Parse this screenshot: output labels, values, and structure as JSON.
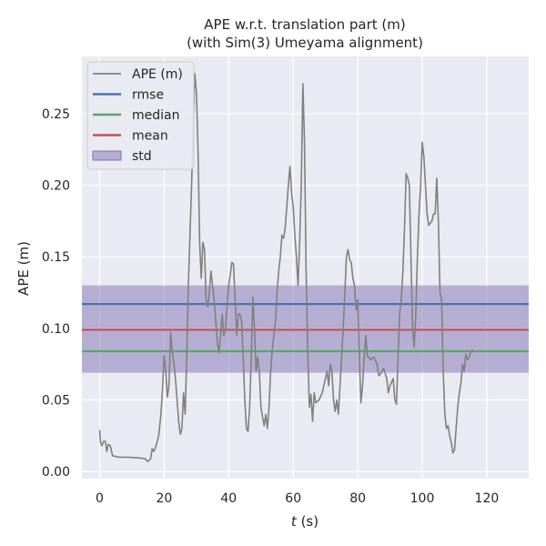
{
  "chart_data": {
    "type": "line",
    "title": "APE w.r.t. translation part (m)",
    "subtitle": "(with Sim(3) Umeyama alignment)",
    "xlabel_var": "t",
    "xlabel_unit": " (s)",
    "ylabel": "APE (m)",
    "xlim": [
      -5.5,
      133
    ],
    "ylim": [
      -0.005,
      0.29
    ],
    "xticks": [
      0,
      20,
      40,
      60,
      80,
      100,
      120
    ],
    "yticks": [
      0.0,
      0.05,
      0.1,
      0.15,
      0.2,
      0.25
    ],
    "grid": true,
    "legend_position": "top-left",
    "legend": [
      {
        "key": "ape",
        "label": "APE (m)",
        "kind": "line",
        "color": "#808080"
      },
      {
        "key": "rmse",
        "label": "rmse",
        "kind": "line",
        "color": "#4c72b0"
      },
      {
        "key": "median",
        "label": "median",
        "kind": "line",
        "color": "#55a868"
      },
      {
        "key": "mean",
        "label": "mean",
        "kind": "line",
        "color": "#c44e52"
      },
      {
        "key": "std",
        "label": "std",
        "kind": "patch",
        "color": "#8172b2"
      }
    ],
    "stats": {
      "rmse": 0.117,
      "median": 0.084,
      "mean": 0.099,
      "std_low": 0.069,
      "std_high": 0.13
    },
    "series": [
      {
        "key": "ape",
        "color": "#808080",
        "points": [
          [
            0,
            0.029
          ],
          [
            0.3,
            0.02
          ],
          [
            0.7,
            0.018
          ],
          [
            1.2,
            0.021
          ],
          [
            1.8,
            0.021
          ],
          [
            2.2,
            0.014
          ],
          [
            2.7,
            0.019
          ],
          [
            3.3,
            0.018
          ],
          [
            4,
            0.011
          ],
          [
            6,
            0.01
          ],
          [
            9,
            0.01
          ],
          [
            12,
            0.0095
          ],
          [
            14,
            0.009
          ],
          [
            15,
            0.007
          ],
          [
            15.8,
            0.009
          ],
          [
            16.3,
            0.016
          ],
          [
            16.8,
            0.014
          ],
          [
            17.5,
            0.018
          ],
          [
            18.3,
            0.025
          ],
          [
            19,
            0.04
          ],
          [
            19.5,
            0.058
          ],
          [
            20,
            0.081
          ],
          [
            20.5,
            0.07
          ],
          [
            21,
            0.052
          ],
          [
            21.5,
            0.06
          ],
          [
            22,
            0.097
          ],
          [
            22.5,
            0.085
          ],
          [
            23,
            0.076
          ],
          [
            23.5,
            0.065
          ],
          [
            24,
            0.05
          ],
          [
            24.5,
            0.035
          ],
          [
            25,
            0.026
          ],
          [
            25.5,
            0.03
          ],
          [
            26,
            0.055
          ],
          [
            26.5,
            0.04
          ],
          [
            27,
            0.08
          ],
          [
            27.5,
            0.13
          ],
          [
            28,
            0.165
          ],
          [
            28.5,
            0.2
          ],
          [
            29,
            0.24
          ],
          [
            29.5,
            0.278
          ],
          [
            30,
            0.265
          ],
          [
            30.5,
            0.225
          ],
          [
            31,
            0.16
          ],
          [
            31.5,
            0.135
          ],
          [
            32,
            0.16
          ],
          [
            32.5,
            0.155
          ],
          [
            33,
            0.12
          ],
          [
            33.5,
            0.115
          ],
          [
            34,
            0.125
          ],
          [
            34.5,
            0.14
          ],
          [
            35,
            0.13
          ],
          [
            35.5,
            0.12
          ],
          [
            36,
            0.105
          ],
          [
            36.5,
            0.09
          ],
          [
            37,
            0.083
          ],
          [
            37.5,
            0.095
          ],
          [
            38,
            0.11
          ],
          [
            38.5,
            0.095
          ],
          [
            39,
            0.1
          ],
          [
            39.5,
            0.115
          ],
          [
            40,
            0.13
          ],
          [
            41,
            0.146
          ],
          [
            41.5,
            0.145
          ],
          [
            42,
            0.12
          ],
          [
            42.5,
            0.095
          ],
          [
            43,
            0.11
          ],
          [
            43.5,
            0.11
          ],
          [
            44,
            0.105
          ],
          [
            44.5,
            0.08
          ],
          [
            45,
            0.05
          ],
          [
            45.5,
            0.03
          ],
          [
            46,
            0.028
          ],
          [
            46.5,
            0.045
          ],
          [
            47,
            0.08
          ],
          [
            47.5,
            0.122
          ],
          [
            48,
            0.1
          ],
          [
            48.5,
            0.07
          ],
          [
            49,
            0.08
          ],
          [
            49.5,
            0.07
          ],
          [
            50,
            0.045
          ],
          [
            50.5,
            0.038
          ],
          [
            51,
            0.032
          ],
          [
            51.5,
            0.04
          ],
          [
            52,
            0.03
          ],
          [
            52.5,
            0.045
          ],
          [
            53,
            0.07
          ],
          [
            53.5,
            0.085
          ],
          [
            54,
            0.095
          ],
          [
            54.5,
            0.105
          ],
          [
            55,
            0.125
          ],
          [
            55.5,
            0.14
          ],
          [
            56,
            0.15
          ],
          [
            56.5,
            0.165
          ],
          [
            57,
            0.163
          ],
          [
            57.5,
            0.17
          ],
          [
            58,
            0.185
          ],
          [
            58.5,
            0.2
          ],
          [
            59,
            0.213
          ],
          [
            59.5,
            0.195
          ],
          [
            60,
            0.185
          ],
          [
            60.5,
            0.165
          ],
          [
            61,
            0.15
          ],
          [
            61.5,
            0.13
          ],
          [
            62,
            0.16
          ],
          [
            62.5,
            0.2
          ],
          [
            63,
            0.271
          ],
          [
            63.5,
            0.23
          ],
          [
            64,
            0.14
          ],
          [
            64.5,
            0.085
          ],
          [
            65,
            0.045
          ],
          [
            65.5,
            0.054
          ],
          [
            66,
            0.035
          ],
          [
            66.5,
            0.055
          ],
          [
            67,
            0.048
          ],
          [
            68,
            0.05
          ],
          [
            69,
            0.055
          ],
          [
            70,
            0.065
          ],
          [
            70.5,
            0.07
          ],
          [
            71,
            0.06
          ],
          [
            71.5,
            0.075
          ],
          [
            72,
            0.07
          ],
          [
            72.5,
            0.05
          ],
          [
            73,
            0.042
          ],
          [
            73.5,
            0.05
          ],
          [
            74,
            0.04
          ],
          [
            74.5,
            0.06
          ],
          [
            75,
            0.08
          ],
          [
            75.5,
            0.1
          ],
          [
            76,
            0.125
          ],
          [
            76.5,
            0.15
          ],
          [
            77,
            0.155
          ],
          [
            77.5,
            0.148
          ],
          [
            78,
            0.146
          ],
          [
            78.5,
            0.135
          ],
          [
            79,
            0.13
          ],
          [
            79.5,
            0.113
          ],
          [
            80,
            0.12
          ],
          [
            80.5,
            0.08
          ],
          [
            81,
            0.048
          ],
          [
            81.5,
            0.06
          ],
          [
            82,
            0.08
          ],
          [
            82.5,
            0.095
          ],
          [
            83,
            0.08
          ],
          [
            83.5,
            0.08
          ],
          [
            84,
            0.078
          ],
          [
            85,
            0.08
          ],
          [
            86,
            0.075
          ],
          [
            86.5,
            0.067
          ],
          [
            87,
            0.068
          ],
          [
            88,
            0.072
          ],
          [
            89,
            0.065
          ],
          [
            89.5,
            0.055
          ],
          [
            90,
            0.06
          ],
          [
            91,
            0.065
          ],
          [
            91.5,
            0.05
          ],
          [
            92,
            0.047
          ],
          [
            92.5,
            0.08
          ],
          [
            93,
            0.11
          ],
          [
            93.5,
            0.12
          ],
          [
            94,
            0.14
          ],
          [
            94.5,
            0.17
          ],
          [
            95,
            0.208
          ],
          [
            95.5,
            0.205
          ],
          [
            96,
            0.2
          ],
          [
            96.5,
            0.15
          ],
          [
            97,
            0.1
          ],
          [
            97.5,
            0.087
          ],
          [
            98,
            0.11
          ],
          [
            98.5,
            0.15
          ],
          [
            99,
            0.18
          ],
          [
            99.5,
            0.2
          ],
          [
            100,
            0.23
          ],
          [
            100.5,
            0.22
          ],
          [
            101,
            0.2
          ],
          [
            101.5,
            0.18
          ],
          [
            102,
            0.172
          ],
          [
            103,
            0.175
          ],
          [
            103.5,
            0.18
          ],
          [
            104,
            0.18
          ],
          [
            104.5,
            0.205
          ],
          [
            105,
            0.175
          ],
          [
            105.5,
            0.125
          ],
          [
            106,
            0.12
          ],
          [
            106.5,
            0.07
          ],
          [
            107,
            0.04
          ],
          [
            107.5,
            0.03
          ],
          [
            108,
            0.032
          ],
          [
            108.5,
            0.025
          ],
          [
            109,
            0.02
          ],
          [
            109.5,
            0.013
          ],
          [
            110,
            0.015
          ],
          [
            110.5,
            0.03
          ],
          [
            111,
            0.045
          ],
          [
            111.5,
            0.055
          ],
          [
            112,
            0.062
          ],
          [
            112.5,
            0.075
          ],
          [
            113,
            0.07
          ],
          [
            113.5,
            0.082
          ],
          [
            114,
            0.078
          ],
          [
            114.5,
            0.08
          ],
          [
            115,
            0.083
          ],
          [
            115.5,
            0.085
          ],
          [
            116,
            0.084
          ]
        ]
      }
    ]
  }
}
